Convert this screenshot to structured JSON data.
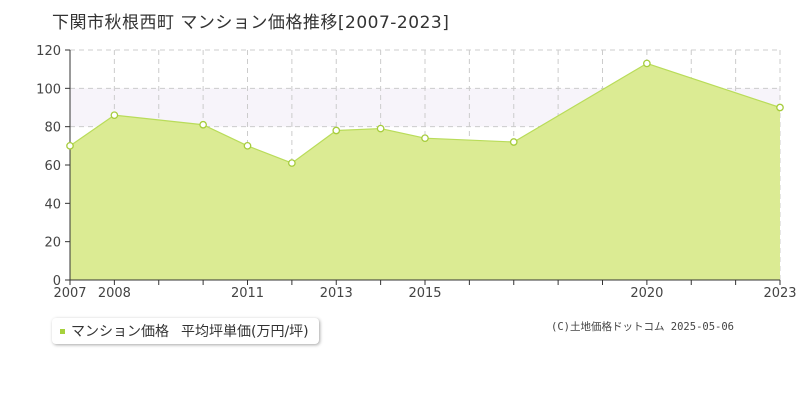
{
  "title": "下関市秋根西町 マンション価格推移[2007-2023]",
  "legend": {
    "series_label": "マンション価格",
    "unit_label": "平均坪単価(万円/坪)"
  },
  "credit": "(C)土地価格ドットコム 2025-05-06",
  "colors": {
    "area_fill": "#dbeb93",
    "line": "#b9dc5a",
    "marker_stroke": "#a6cc3c",
    "band": "#f7f4fa",
    "grid": "#cccccc",
    "axis": "#333333"
  },
  "chart_data": {
    "type": "area",
    "title": "下関市秋根西町 マンション価格推移[2007-2023]",
    "xlabel": "",
    "ylabel": "",
    "x": [
      2007,
      2008,
      2009,
      2010,
      2011,
      2012,
      2013,
      2014,
      2015,
      2016,
      2017,
      2018,
      2019,
      2020,
      2021,
      2022,
      2023
    ],
    "x_tick_labels": [
      "2007",
      "2008",
      "2011",
      "2013",
      "2015",
      "2020",
      "2023"
    ],
    "xlim": [
      2007,
      2023
    ],
    "y_ticks": [
      0,
      20,
      40,
      60,
      80,
      100,
      120
    ],
    "ylim": [
      0,
      120
    ],
    "highlight_band": [
      80,
      100
    ],
    "grid": true,
    "legend_position": "bottom-left",
    "series": [
      {
        "name": "マンション価格 平均坪単価(万円/坪)",
        "points": [
          {
            "x": 2007,
            "y": 70
          },
          {
            "x": 2008,
            "y": 86
          },
          {
            "x": 2010,
            "y": 81
          },
          {
            "x": 2011,
            "y": 70
          },
          {
            "x": 2012,
            "y": 61
          },
          {
            "x": 2013,
            "y": 78
          },
          {
            "x": 2014,
            "y": 79
          },
          {
            "x": 2015,
            "y": 74
          },
          {
            "x": 2017,
            "y": 72
          },
          {
            "x": 2020,
            "y": 113
          },
          {
            "x": 2023,
            "y": 90
          }
        ]
      }
    ]
  }
}
